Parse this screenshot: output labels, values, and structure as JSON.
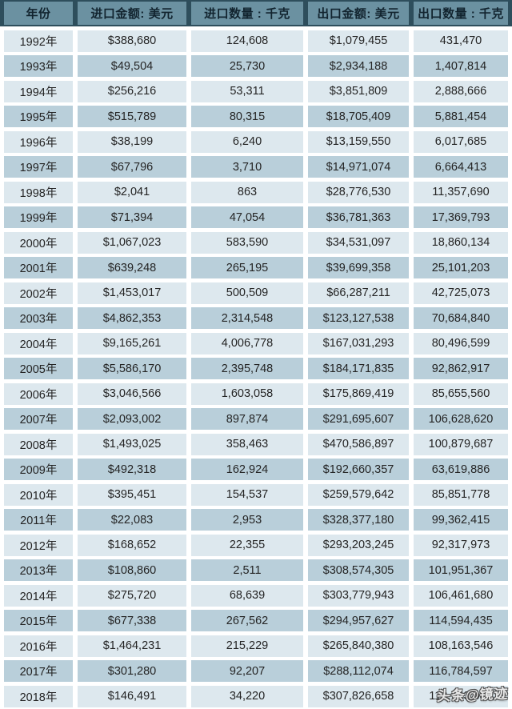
{
  "colors": {
    "header_bg": "#6b91a1",
    "header_separator": "#2e4e5c",
    "header_text": "#12242f",
    "row_light": "#dde8ee",
    "row_dark": "#b9cfda",
    "row_text": "#242424",
    "gap": "#ffffff"
  },
  "watermark": {
    "text": "头条@镜迹"
  },
  "chart_data": {
    "type": "table",
    "title": "",
    "columns": [
      "年份",
      "进口金额: 美元",
      "进口数量 : 千克",
      "出口金额: 美元",
      "出口数量 : 千克"
    ],
    "rows": [
      [
        "1992年",
        "$388,680",
        "124,608",
        "$1,079,455",
        "431,470"
      ],
      [
        "1993年",
        "$49,504",
        "25,730",
        "$2,934,188",
        "1,407,814"
      ],
      [
        "1994年",
        "$256,216",
        "53,311",
        "$3,851,809",
        "2,888,666"
      ],
      [
        "1995年",
        "$515,789",
        "80,315",
        "$18,705,409",
        "5,881,454"
      ],
      [
        "1996年",
        "$38,199",
        "6,240",
        "$13,159,550",
        "6,017,685"
      ],
      [
        "1997年",
        "$67,796",
        "3,710",
        "$14,971,074",
        "6,664,413"
      ],
      [
        "1998年",
        "$2,041",
        "863",
        "$28,776,530",
        "11,357,690"
      ],
      [
        "1999年",
        "$71,394",
        "47,054",
        "$36,781,363",
        "17,369,793"
      ],
      [
        "2000年",
        "$1,067,023",
        "583,590",
        "$34,531,097",
        "18,860,134"
      ],
      [
        "2001年",
        "$639,248",
        "265,195",
        "$39,699,358",
        "25,101,203"
      ],
      [
        "2002年",
        "$1,453,017",
        "500,509",
        "$66,287,211",
        "42,725,073"
      ],
      [
        "2003年",
        "$4,862,353",
        "2,314,548",
        "$123,127,538",
        "70,684,840"
      ],
      [
        "2004年",
        "$9,165,261",
        "4,006,778",
        "$167,031,293",
        "80,496,599"
      ],
      [
        "2005年",
        "$5,586,170",
        "2,395,748",
        "$184,171,835",
        "92,862,917"
      ],
      [
        "2006年",
        "$3,046,566",
        "1,603,058",
        "$175,869,419",
        "85,655,560"
      ],
      [
        "2007年",
        "$2,093,002",
        "897,874",
        "$291,695,607",
        "106,628,620"
      ],
      [
        "2008年",
        "$1,493,025",
        "358,463",
        "$470,586,897",
        "100,879,687"
      ],
      [
        "2009年",
        "$492,318",
        "162,924",
        "$192,660,357",
        "63,619,886"
      ],
      [
        "2010年",
        "$395,451",
        "154,537",
        "$259,579,642",
        "85,851,778"
      ],
      [
        "2011年",
        "$22,083",
        "2,953",
        "$328,377,180",
        "99,362,415"
      ],
      [
        "2012年",
        "$168,652",
        "22,355",
        "$293,203,245",
        "92,317,973"
      ],
      [
        "2013年",
        "$108,860",
        "2,511",
        "$308,574,305",
        "101,951,367"
      ],
      [
        "2014年",
        "$275,720",
        "68,639",
        "$303,779,943",
        "106,461,680"
      ],
      [
        "2015年",
        "$677,338",
        "267,562",
        "$294,957,627",
        "114,594,435"
      ],
      [
        "2016年",
        "$1,464,231",
        "215,229",
        "$265,840,380",
        "108,163,546"
      ],
      [
        "2017年",
        "$301,280",
        "92,207",
        "$288,112,074",
        "116,784,597"
      ],
      [
        "2018年",
        "$146,491",
        "34,220",
        "$307,826,658",
        "112,703,086"
      ]
    ]
  }
}
